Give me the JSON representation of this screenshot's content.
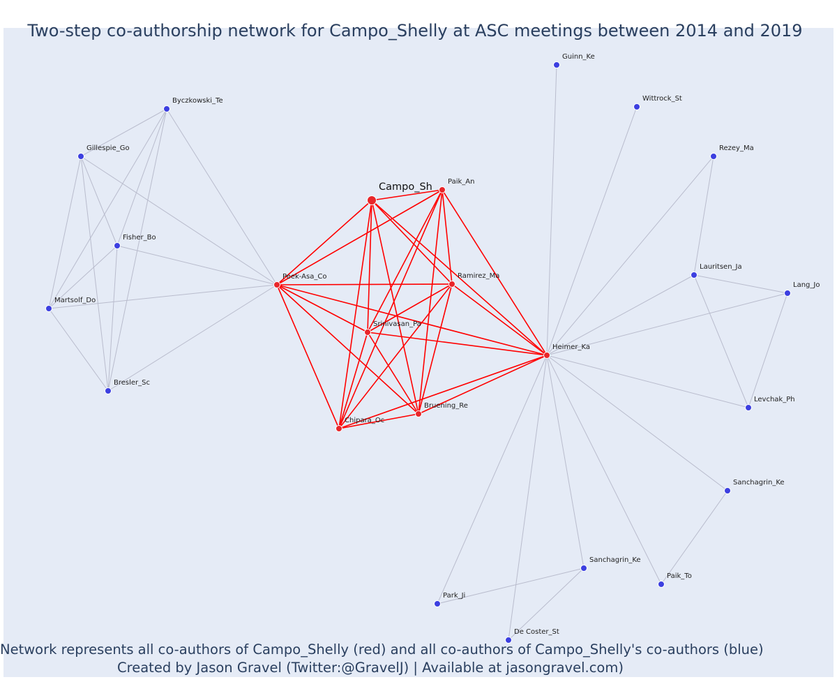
{
  "title": "Two-step co-authorship network for Campo_Shelly at ASC meetings between 2014 and 2019",
  "footer": {
    "line1": "Network represents all co-authors of Campo_Shelly (red) and all co-authors of Campo_Shelly's co-authors (blue)",
    "line2": "Created by Jason Gravel (Twitter:@GravelJ) | Available at jasongravel.com)"
  },
  "colors": {
    "background": "#e5ebf6",
    "red_node": "#e8262a",
    "red_edge": "#ff0000",
    "blue_node": "#3c3fe0",
    "blue_edge": "#b9bccd"
  },
  "nodes": [
    {
      "id": "Campo_Sh",
      "label": "Campo_Sh",
      "group": "focal"
    },
    {
      "id": "Paik_An",
      "label": "Paik_An",
      "group": "red"
    },
    {
      "id": "Peek-Asa_Co",
      "label": "Peek-Asa_Co",
      "group": "red"
    },
    {
      "id": "Ramirez_Ma",
      "label": "Ramirez_Ma",
      "group": "red"
    },
    {
      "id": "Srinivasan_Pa",
      "label": "Srinivasan_Pa",
      "group": "red"
    },
    {
      "id": "Heimer_Ka",
      "label": "Heimer_Ka",
      "group": "red"
    },
    {
      "id": "Chipara_Oc",
      "label": "Chipara_Oc",
      "group": "red"
    },
    {
      "id": "Bruening_Re",
      "label": "Bruening_Re",
      "group": "red"
    },
    {
      "id": "Byczkowski_Te",
      "label": "Byczkowski_Te",
      "group": "blue"
    },
    {
      "id": "Gillespie_Go",
      "label": "Gillespie_Go",
      "group": "blue"
    },
    {
      "id": "Fisher_Bo",
      "label": "Fisher_Bo",
      "group": "blue"
    },
    {
      "id": "Martsolf_Do",
      "label": "Martsolf_Do",
      "group": "blue"
    },
    {
      "id": "Bresler_Sc",
      "label": "Bresler_Sc",
      "group": "blue"
    },
    {
      "id": "Guinn_Ke",
      "label": "Guinn_Ke",
      "group": "blue"
    },
    {
      "id": "Wittrock_St",
      "label": "Wittrock_St",
      "group": "blue"
    },
    {
      "id": "Rezey_Ma",
      "label": "Rezey_Ma",
      "group": "blue"
    },
    {
      "id": "Lauritsen_Ja",
      "label": "Lauritsen_Ja",
      "group": "blue"
    },
    {
      "id": "Lang_Jo",
      "label": "Lang_Jo",
      "group": "blue"
    },
    {
      "id": "Levchak_Ph",
      "label": "Levchak_Ph",
      "group": "blue"
    },
    {
      "id": "Sanchagrin_Ke_1",
      "label": "Sanchagrin_Ke",
      "group": "blue"
    },
    {
      "id": "Sanchagrin_Ke_2",
      "label": "Sanchagrin_Ke",
      "group": "blue"
    },
    {
      "id": "Paik_To",
      "label": "Paik_To",
      "group": "blue"
    },
    {
      "id": "Park_Ji",
      "label": "Park_Ji",
      "group": "blue"
    },
    {
      "id": "De_Coster_St",
      "label": "De Coster_St",
      "group": "blue"
    }
  ],
  "red_edges": [
    [
      "Campo_Sh",
      "Paik_An"
    ],
    [
      "Campo_Sh",
      "Peek-Asa_Co"
    ],
    [
      "Campo_Sh",
      "Ramirez_Ma"
    ],
    [
      "Campo_Sh",
      "Srinivasan_Pa"
    ],
    [
      "Campo_Sh",
      "Heimer_Ka"
    ],
    [
      "Campo_Sh",
      "Chipara_Oc"
    ],
    [
      "Campo_Sh",
      "Bruening_Re"
    ],
    [
      "Paik_An",
      "Peek-Asa_Co"
    ],
    [
      "Paik_An",
      "Ramirez_Ma"
    ],
    [
      "Paik_An",
      "Srinivasan_Pa"
    ],
    [
      "Paik_An",
      "Heimer_Ka"
    ],
    [
      "Paik_An",
      "Chipara_Oc"
    ],
    [
      "Paik_An",
      "Bruening_Re"
    ],
    [
      "Peek-Asa_Co",
      "Ramirez_Ma"
    ],
    [
      "Peek-Asa_Co",
      "Srinivasan_Pa"
    ],
    [
      "Peek-Asa_Co",
      "Heimer_Ka"
    ],
    [
      "Peek-Asa_Co",
      "Chipara_Oc"
    ],
    [
      "Peek-Asa_Co",
      "Bruening_Re"
    ],
    [
      "Ramirez_Ma",
      "Srinivasan_Pa"
    ],
    [
      "Ramirez_Ma",
      "Heimer_Ka"
    ],
    [
      "Ramirez_Ma",
      "Chipara_Oc"
    ],
    [
      "Ramirez_Ma",
      "Bruening_Re"
    ],
    [
      "Srinivasan_Pa",
      "Heimer_Ka"
    ],
    [
      "Srinivasan_Pa",
      "Chipara_Oc"
    ],
    [
      "Srinivasan_Pa",
      "Bruening_Re"
    ],
    [
      "Heimer_Ka",
      "Chipara_Oc"
    ],
    [
      "Heimer_Ka",
      "Bruening_Re"
    ],
    [
      "Chipara_Oc",
      "Bruening_Re"
    ]
  ],
  "blue_edges": [
    [
      "Byczkowski_Te",
      "Gillespie_Go"
    ],
    [
      "Byczkowski_Te",
      "Fisher_Bo"
    ],
    [
      "Byczkowski_Te",
      "Martsolf_Do"
    ],
    [
      "Byczkowski_Te",
      "Bresler_Sc"
    ],
    [
      "Byczkowski_Te",
      "Peek-Asa_Co"
    ],
    [
      "Gillespie_Go",
      "Fisher_Bo"
    ],
    [
      "Gillespie_Go",
      "Martsolf_Do"
    ],
    [
      "Gillespie_Go",
      "Bresler_Sc"
    ],
    [
      "Gillespie_Go",
      "Peek-Asa_Co"
    ],
    [
      "Fisher_Bo",
      "Martsolf_Do"
    ],
    [
      "Fisher_Bo",
      "Bresler_Sc"
    ],
    [
      "Fisher_Bo",
      "Peek-Asa_Co"
    ],
    [
      "Martsolf_Do",
      "Bresler_Sc"
    ],
    [
      "Martsolf_Do",
      "Peek-Asa_Co"
    ],
    [
      "Bresler_Sc",
      "Peek-Asa_Co"
    ],
    [
      "Guinn_Ke",
      "Heimer_Ka"
    ],
    [
      "Wittrock_St",
      "Heimer_Ka"
    ],
    [
      "Rezey_Ma",
      "Heimer_Ka"
    ],
    [
      "Rezey_Ma",
      "Lauritsen_Ja"
    ],
    [
      "Lauritsen_Ja",
      "Heimer_Ka"
    ],
    [
      "Lauritsen_Ja",
      "Lang_Jo"
    ],
    [
      "Lauritsen_Ja",
      "Levchak_Ph"
    ],
    [
      "Lang_Jo",
      "Heimer_Ka"
    ],
    [
      "Lang_Jo",
      "Levchak_Ph"
    ],
    [
      "Levchak_Ph",
      "Heimer_Ka"
    ],
    [
      "Sanchagrin_Ke_1",
      "Heimer_Ka"
    ],
    [
      "Sanchagrin_Ke_1",
      "Paik_To"
    ],
    [
      "Paik_To",
      "Heimer_Ka"
    ],
    [
      "Sanchagrin_Ke_2",
      "Heimer_Ka"
    ],
    [
      "Sanchagrin_Ke_2",
      "Park_Ji"
    ],
    [
      "Sanchagrin_Ke_2",
      "De_Coster_St"
    ],
    [
      "Park_Ji",
      "Heimer_Ka"
    ],
    [
      "De_Coster_St",
      "Heimer_Ka"
    ]
  ]
}
